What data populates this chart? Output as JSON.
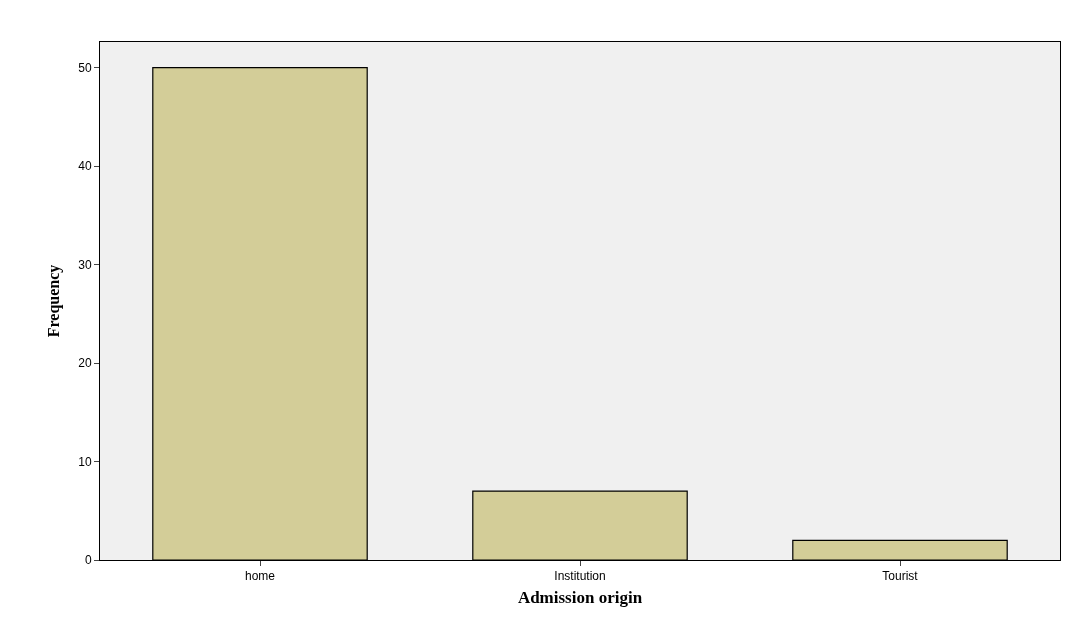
{
  "chart_data": {
    "type": "bar",
    "xlabel": "Admission origin",
    "ylabel": "Frequency",
    "categories": [
      "home",
      "Institution",
      "Tourist"
    ],
    "values": [
      50,
      7,
      2
    ],
    "color": "#d3cd98",
    "ylim": [
      0,
      52.6
    ],
    "yticks": [
      0,
      10,
      20,
      30,
      40,
      50
    ],
    "grid": false,
    "legend": false
  }
}
